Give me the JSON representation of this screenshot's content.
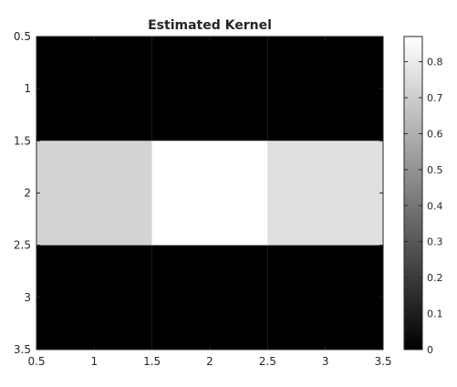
{
  "chart_data": {
    "type": "heatmap",
    "title": "Estimated Kernel",
    "xlabel": "",
    "ylabel": "",
    "x_centers": [
      1,
      2,
      3
    ],
    "y_centers": [
      1,
      2,
      3
    ],
    "xlim": [
      0.5,
      3.5
    ],
    "ylim": [
      0.5,
      3.5
    ],
    "y_direction": "reversed",
    "x_ticks": [
      0.5,
      1,
      1.5,
      2,
      2.5,
      3,
      3.5
    ],
    "x_tick_labels": [
      "0.5",
      "1",
      "1.5",
      "2",
      "2.5",
      "3",
      "3.5"
    ],
    "y_ticks": [
      0.5,
      1,
      1.5,
      2,
      2.5,
      3,
      3.5
    ],
    "y_tick_labels": [
      "0.5",
      "1",
      "1.5",
      "2",
      "2.5",
      "3",
      "3.5"
    ],
    "values": [
      [
        0,
        0,
        0
      ],
      [
        0.72,
        0.87,
        0.76
      ],
      [
        0,
        0,
        0
      ]
    ],
    "colormap": "gray",
    "color_range": [
      0,
      0.87
    ],
    "colorbar": {
      "ticks": [
        0,
        0.1,
        0.2,
        0.3,
        0.4,
        0.5,
        0.6,
        0.7,
        0.8
      ],
      "tick_labels": [
        "0",
        "0.1",
        "0.2",
        "0.3",
        "0.4",
        "0.5",
        "0.6",
        "0.7",
        "0.8"
      ]
    },
    "grid": false
  }
}
